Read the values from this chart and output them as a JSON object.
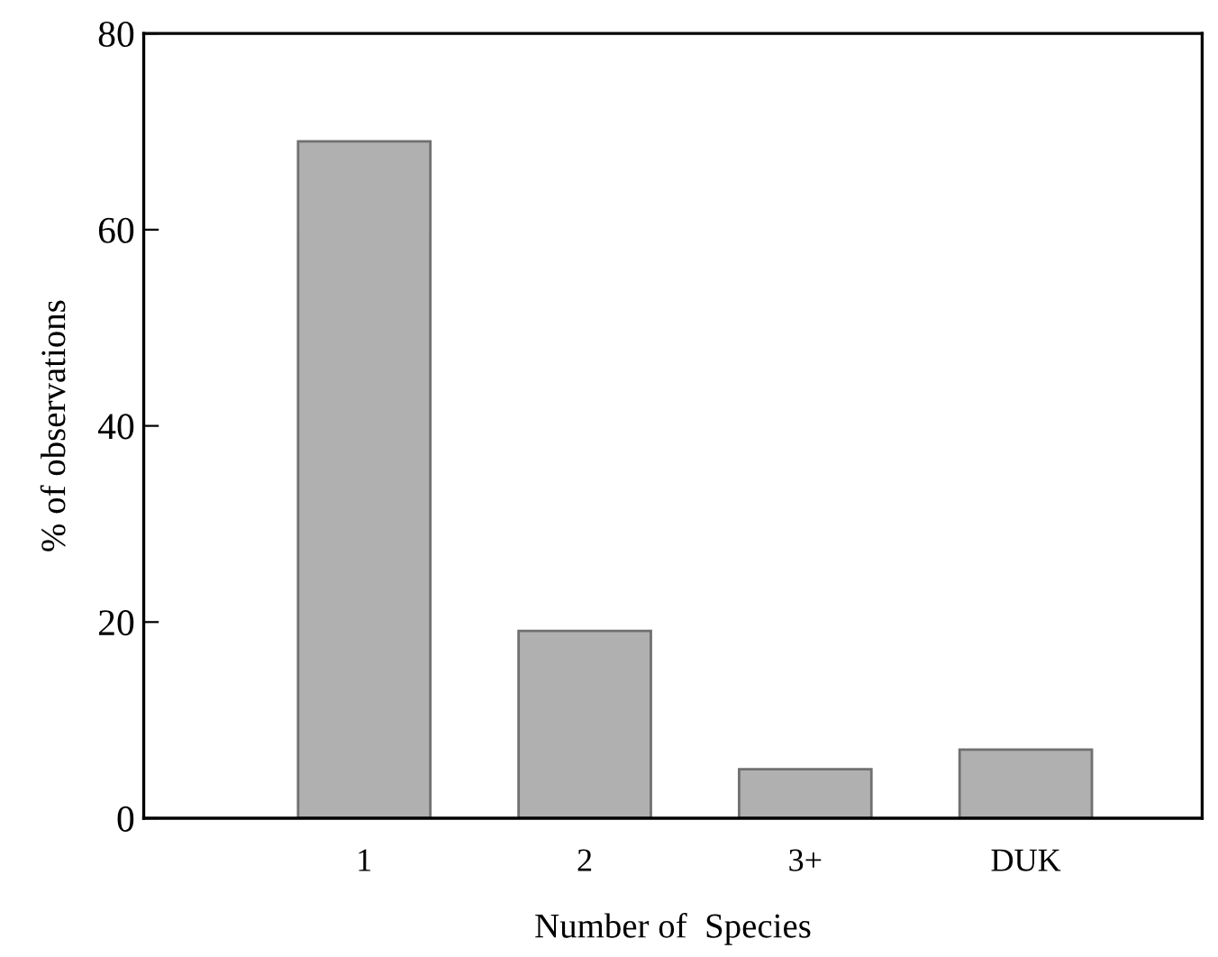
{
  "chart_data": {
    "type": "bar",
    "xlabel": "Number of  Species",
    "ylabel": "% of observations",
    "categories": [
      "1",
      "2",
      "3+",
      "DUK"
    ],
    "values": [
      69,
      19.1,
      5,
      7
    ],
    "color": "#b0b0b0",
    "ylim": [
      0,
      80
    ],
    "yticks": [
      0,
      20,
      40,
      60,
      80
    ],
    "grid": false,
    "legend": false
  }
}
